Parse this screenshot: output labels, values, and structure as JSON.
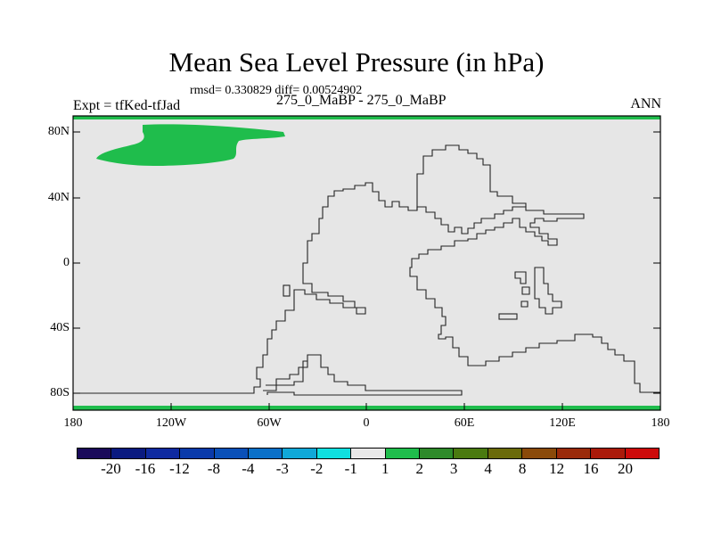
{
  "figure": {
    "title": "Mean Sea Level Pressure (in hPa)",
    "stats": "rmsd= 0.330829 diff= 0.00524902",
    "left_label": "Expt = tfKed-tfJad",
    "center_label": "275_0_MaBP - 275_0_MaBP",
    "right_label": "ANN",
    "background_color": "#e6e6e6",
    "positive_anomaly_color": "#1fbd4c"
  },
  "chart_data": {
    "type": "heatmap",
    "map_type": "difference map, cylindrical equidistant projection, paleogeography",
    "x_range": [
      -180,
      180
    ],
    "y_range": [
      -90,
      90
    ],
    "x_ticks": [
      "180",
      "120W",
      "60W",
      "0",
      "60E",
      "120E",
      "180"
    ],
    "y_ticks": [
      "80N",
      "40N",
      "0",
      "40S",
      "80S"
    ],
    "value_levels": [
      "-20",
      "-16",
      "-12",
      "-8",
      "-4",
      "-3",
      "-2",
      "-1",
      "1",
      "2",
      "3",
      "4",
      "8",
      "12",
      "16",
      "20"
    ],
    "level_colors": [
      "#1a0a5a",
      "#0a1a80",
      "#0f2aa0",
      "#0a3aaa",
      "#0a50b8",
      "#0a70c8",
      "#10a8d8",
      "#10e0e0",
      "#e8e8e8",
      "#1fbd4c",
      "#2e8a2a",
      "#4a7a10",
      "#6a6a0a",
      "#8a4a0a",
      "#9a2a0a",
      "#aa1a0a",
      "#cc0a0a"
    ],
    "regions": [
      {
        "name": "Arctic positive anomaly",
        "value_range": "1 to 2"
      },
      {
        "name": "North pole band",
        "value_range": "1 to 2"
      },
      {
        "name": "South pole band",
        "value_range": "1 to 2"
      }
    ]
  }
}
